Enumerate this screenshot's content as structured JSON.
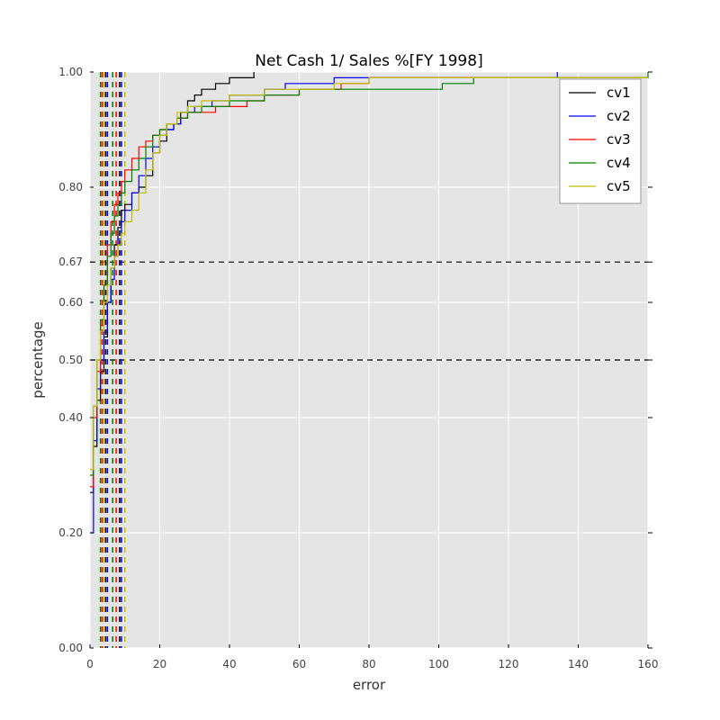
{
  "chart_data": {
    "type": "line",
    "title": "Net Cash 1/ Sales %[FY 1998]",
    "xlabel": "error",
    "ylabel": "percentage",
    "xlim": [
      0,
      160
    ],
    "ylim": [
      0.0,
      1.0
    ],
    "xticks": [
      0,
      20,
      40,
      60,
      80,
      100,
      120,
      140,
      160
    ],
    "xtick_labels": [
      "0",
      "20",
      "40",
      "60",
      "80",
      "100",
      "120",
      "140",
      "160"
    ],
    "yticks": [
      0.0,
      0.2,
      0.4,
      0.5,
      0.6,
      0.67,
      0.8,
      1.0
    ],
    "ytick_labels": [
      "0.00",
      "0.20",
      "0.40",
      "0.50",
      "0.60",
      "0.67",
      "0.80",
      "1.00"
    ],
    "grid": true,
    "legend_position": "top-right",
    "hlines": [
      0.5,
      0.67
    ],
    "series": [
      {
        "name": "cv1",
        "color": "#000000",
        "x": [
          0,
          1,
          2,
          3,
          4,
          5,
          6,
          7,
          8,
          9,
          10,
          12,
          14,
          16,
          18,
          20,
          22,
          24,
          26,
          28,
          30,
          32,
          34,
          36,
          38,
          40,
          44,
          47
        ],
        "y": [
          0.27,
          0.35,
          0.43,
          0.48,
          0.54,
          0.6,
          0.66,
          0.7,
          0.73,
          0.76,
          0.77,
          0.79,
          0.8,
          0.82,
          0.86,
          0.88,
          0.9,
          0.91,
          0.93,
          0.95,
          0.96,
          0.97,
          0.97,
          0.98,
          0.98,
          0.99,
          0.99,
          1.0
        ]
      },
      {
        "name": "cv2",
        "color": "#0000ff",
        "x": [
          0,
          1,
          2,
          3,
          4,
          5,
          6,
          7,
          8,
          9,
          10,
          12,
          14,
          16,
          18,
          20,
          22,
          24,
          26,
          28,
          30,
          35,
          40,
          50,
          56,
          70,
          100,
          134
        ],
        "y": [
          0.2,
          0.36,
          0.45,
          0.5,
          0.55,
          0.6,
          0.64,
          0.68,
          0.71,
          0.74,
          0.76,
          0.79,
          0.82,
          0.85,
          0.87,
          0.89,
          0.9,
          0.91,
          0.92,
          0.93,
          0.94,
          0.95,
          0.96,
          0.97,
          0.98,
          0.99,
          0.99,
          1.0
        ]
      },
      {
        "name": "cv3",
        "color": "#ff0000",
        "x": [
          0,
          1,
          2,
          3,
          4,
          5,
          6,
          7,
          8,
          9,
          10,
          12,
          14,
          16,
          18,
          20,
          22,
          25,
          28,
          30,
          36,
          45,
          50,
          60,
          72,
          80,
          100,
          160
        ],
        "y": [
          0.28,
          0.4,
          0.48,
          0.56,
          0.63,
          0.7,
          0.74,
          0.77,
          0.79,
          0.81,
          0.83,
          0.85,
          0.87,
          0.88,
          0.89,
          0.9,
          0.91,
          0.92,
          0.93,
          0.93,
          0.94,
          0.95,
          0.96,
          0.97,
          0.98,
          0.99,
          0.99,
          0.99
        ]
      },
      {
        "name": "cv4",
        "color": "#008000",
        "x": [
          0,
          1,
          2,
          3,
          4,
          5,
          6,
          7,
          8,
          9,
          10,
          12,
          14,
          16,
          18,
          20,
          22,
          25,
          28,
          32,
          40,
          50,
          60,
          80,
          101,
          110,
          128,
          160
        ],
        "y": [
          0.3,
          0.42,
          0.5,
          0.57,
          0.63,
          0.68,
          0.72,
          0.75,
          0.77,
          0.79,
          0.81,
          0.83,
          0.85,
          0.87,
          0.89,
          0.9,
          0.91,
          0.92,
          0.93,
          0.94,
          0.95,
          0.96,
          0.97,
          0.97,
          0.98,
          0.99,
          0.99,
          1.0
        ]
      },
      {
        "name": "cv5",
        "color": "#bfbf00",
        "x": [
          0,
          1,
          2,
          3,
          4,
          5,
          6,
          7,
          8,
          9,
          10,
          12,
          14,
          16,
          18,
          20,
          22,
          25,
          28,
          32,
          40,
          50,
          60,
          70,
          80,
          100,
          140,
          160
        ],
        "y": [
          0.31,
          0.42,
          0.5,
          0.55,
          0.6,
          0.63,
          0.66,
          0.68,
          0.7,
          0.72,
          0.74,
          0.76,
          0.79,
          0.83,
          0.86,
          0.89,
          0.91,
          0.93,
          0.94,
          0.95,
          0.96,
          0.97,
          0.97,
          0.98,
          0.99,
          0.99,
          0.99,
          0.99
        ]
      }
    ],
    "vlines": [
      {
        "color": "#000000",
        "x": [
          4.5,
          8.5
        ]
      },
      {
        "color": "#0000ff",
        "x": [
          5,
          9
        ]
      },
      {
        "color": "#ff0000",
        "x": [
          3.5,
          7.5
        ]
      },
      {
        "color": "#008000",
        "x": [
          3,
          6.5
        ]
      },
      {
        "color": "#bfbf00",
        "x": [
          4,
          10
        ]
      }
    ]
  }
}
